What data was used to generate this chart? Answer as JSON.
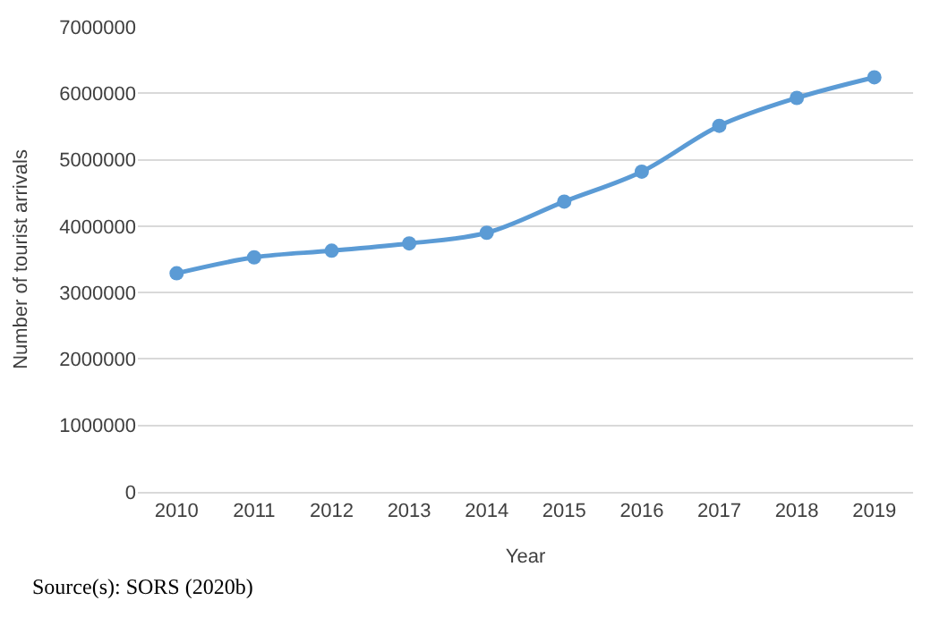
{
  "chart_data": {
    "type": "line",
    "xlabel": "Year",
    "ylabel": "Number of tourist arrivals",
    "categories": [
      "2010",
      "2011",
      "2012",
      "2013",
      "2014",
      "2015",
      "2016",
      "2017",
      "2018",
      "2019"
    ],
    "series": [
      {
        "color": "#5b9bd5",
        "values": [
          3290000,
          3530000,
          3630000,
          3740000,
          3900000,
          4370000,
          4820000,
          5510000,
          5930000,
          6240000
        ]
      }
    ],
    "ylim": [
      0,
      7000000
    ],
    "yticks": [
      0,
      1000000,
      2000000,
      3000000,
      4000000,
      5000000,
      6000000,
      7000000
    ],
    "grid": "y",
    "marker": "circle",
    "line_style": "solid",
    "legend": false,
    "annotations": [
      "Source(s): SORS (2020b)"
    ]
  }
}
